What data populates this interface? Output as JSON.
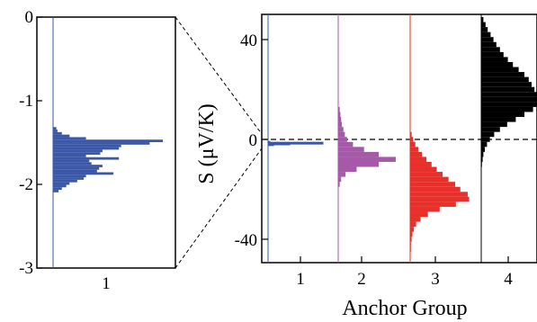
{
  "chart_data": [
    {
      "type": "histogram",
      "panel": "inset",
      "title": "",
      "xlabel": "",
      "ylabel": "",
      "ylim": [
        -3,
        0
      ],
      "yticks": [
        0,
        -1,
        -2,
        -3
      ],
      "categories": [
        "1"
      ],
      "x_position": 1,
      "color": "#3a57a8",
      "series": [
        {
          "category": "1",
          "color": "#3a57a8",
          "bins": [
            {
              "y": -1.33,
              "count": 0.03
            },
            {
              "y": -1.36,
              "count": 0.04
            },
            {
              "y": -1.39,
              "count": 0.08
            },
            {
              "y": -1.42,
              "count": 0.15
            },
            {
              "y": -1.45,
              "count": 0.3
            },
            {
              "y": -1.48,
              "count": 1.0
            },
            {
              "y": -1.51,
              "count": 0.88
            },
            {
              "y": -1.54,
              "count": 0.62
            },
            {
              "y": -1.57,
              "count": 0.6
            },
            {
              "y": -1.6,
              "count": 0.45
            },
            {
              "y": -1.63,
              "count": 0.43
            },
            {
              "y": -1.66,
              "count": 0.3
            },
            {
              "y": -1.69,
              "count": 0.6
            },
            {
              "y": -1.72,
              "count": 0.33
            },
            {
              "y": -1.75,
              "count": 0.35
            },
            {
              "y": -1.78,
              "count": 0.45
            },
            {
              "y": -1.81,
              "count": 0.42
            },
            {
              "y": -1.84,
              "count": 0.4
            },
            {
              "y": -1.87,
              "count": 0.55
            },
            {
              "y": -1.9,
              "count": 0.3
            },
            {
              "y": -1.93,
              "count": 0.28
            },
            {
              "y": -1.96,
              "count": 0.22
            },
            {
              "y": -1.99,
              "count": 0.15
            },
            {
              "y": -2.02,
              "count": 0.12
            },
            {
              "y": -2.05,
              "count": 0.08
            },
            {
              "y": -2.08,
              "count": 0.05
            }
          ],
          "count_max_offset": 1.0
        }
      ],
      "axis_ticks_x": [
        "1"
      ]
    },
    {
      "type": "histogram",
      "panel": "main",
      "title": "",
      "xlabel": "Anchor Group",
      "ylabel": "S (μV/K)",
      "ylim": [
        -50,
        52
      ],
      "yticks": [
        40,
        0,
        -40
      ],
      "xlim": [
        0.4,
        4.6
      ],
      "categories": [
        "1",
        "2",
        "3",
        "4"
      ],
      "reference_line_y": 0,
      "series": [
        {
          "category": "1",
          "color": "#3a57a8",
          "bins": [
            {
              "y": -1.2,
              "count": 0.03
            },
            {
              "y": -1.5,
              "count": 0.75
            },
            {
              "y": -1.8,
              "count": 0.3
            },
            {
              "y": -2.1,
              "count": 0.08
            }
          ]
        },
        {
          "category": "2",
          "color": "#a559a8",
          "bins": [
            {
              "y": 12,
              "count": 0.02
            },
            {
              "y": 10,
              "count": 0.03
            },
            {
              "y": 8,
              "count": 0.04
            },
            {
              "y": 6,
              "count": 0.05
            },
            {
              "y": 4,
              "count": 0.07
            },
            {
              "y": 2,
              "count": 0.09
            },
            {
              "y": 0,
              "count": 0.12
            },
            {
              "y": -2,
              "count": 0.2
            },
            {
              "y": -4,
              "count": 0.35
            },
            {
              "y": -6,
              "count": 0.55
            },
            {
              "y": -8,
              "count": 0.78
            },
            {
              "y": -10,
              "count": 0.55
            },
            {
              "y": -12,
              "count": 0.25
            },
            {
              "y": -14,
              "count": 0.1
            },
            {
              "y": -16,
              "count": 0.04
            },
            {
              "y": -18,
              "count": 0.02
            }
          ]
        },
        {
          "category": "3",
          "color": "#e8302a",
          "bins": [
            {
              "y": 2,
              "count": 0.02
            },
            {
              "y": 0,
              "count": 0.04
            },
            {
              "y": -2,
              "count": 0.07
            },
            {
              "y": -4,
              "count": 0.11
            },
            {
              "y": -6,
              "count": 0.16
            },
            {
              "y": -8,
              "count": 0.22
            },
            {
              "y": -10,
              "count": 0.29
            },
            {
              "y": -12,
              "count": 0.36
            },
            {
              "y": -14,
              "count": 0.44
            },
            {
              "y": -16,
              "count": 0.52
            },
            {
              "y": -18,
              "count": 0.61
            },
            {
              "y": -20,
              "count": 0.68
            },
            {
              "y": -22,
              "count": 0.78
            },
            {
              "y": -24,
              "count": 0.8
            },
            {
              "y": -26,
              "count": 0.62
            },
            {
              "y": -28,
              "count": 0.4
            },
            {
              "y": -30,
              "count": 0.24
            },
            {
              "y": -32,
              "count": 0.14
            },
            {
              "y": -34,
              "count": 0.08
            },
            {
              "y": -36,
              "count": 0.05
            },
            {
              "y": -38,
              "count": 0.03
            },
            {
              "y": -40,
              "count": 0.02
            },
            {
              "y": -42,
              "count": 0.01
            },
            {
              "y": -44,
              "count": 0.01
            }
          ]
        },
        {
          "category": "4",
          "color": "#000000",
          "bins": [
            {
              "y": 48,
              "count": 0.03
            },
            {
              "y": 46,
              "count": 0.06
            },
            {
              "y": 44,
              "count": 0.09
            },
            {
              "y": 42,
              "count": 0.13
            },
            {
              "y": 40,
              "count": 0.17
            },
            {
              "y": 38,
              "count": 0.21
            },
            {
              "y": 36,
              "count": 0.26
            },
            {
              "y": 34,
              "count": 0.31
            },
            {
              "y": 32,
              "count": 0.37
            },
            {
              "y": 30,
              "count": 0.44
            },
            {
              "y": 28,
              "count": 0.52
            },
            {
              "y": 26,
              "count": 0.6
            },
            {
              "y": 24,
              "count": 0.66
            },
            {
              "y": 22,
              "count": 0.7
            },
            {
              "y": 20,
              "count": 0.74
            },
            {
              "y": 18,
              "count": 0.8
            },
            {
              "y": 16,
              "count": 0.84
            },
            {
              "y": 14,
              "count": 0.8
            },
            {
              "y": 12,
              "count": 0.72
            },
            {
              "y": 10,
              "count": 0.6
            },
            {
              "y": 8,
              "count": 0.48
            },
            {
              "y": 6,
              "count": 0.36
            },
            {
              "y": 4,
              "count": 0.26
            },
            {
              "y": 2,
              "count": 0.18
            },
            {
              "y": 0,
              "count": 0.12
            },
            {
              "y": -2,
              "count": 0.08
            },
            {
              "y": -4,
              "count": 0.05
            },
            {
              "y": -6,
              "count": 0.03
            },
            {
              "y": -8,
              "count": 0.02
            },
            {
              "y": -10,
              "count": 0.01
            }
          ]
        }
      ]
    }
  ],
  "labels": {
    "inset_yticks": [
      "0",
      "-1",
      "-2",
      "-3"
    ],
    "inset_xtick": "1",
    "main_yticks": [
      "40",
      "0",
      "-40"
    ],
    "main_xticks": [
      "1",
      "2",
      "3",
      "4"
    ],
    "ylabel": "S (μV/K)",
    "xlabel": "Anchor Group"
  }
}
